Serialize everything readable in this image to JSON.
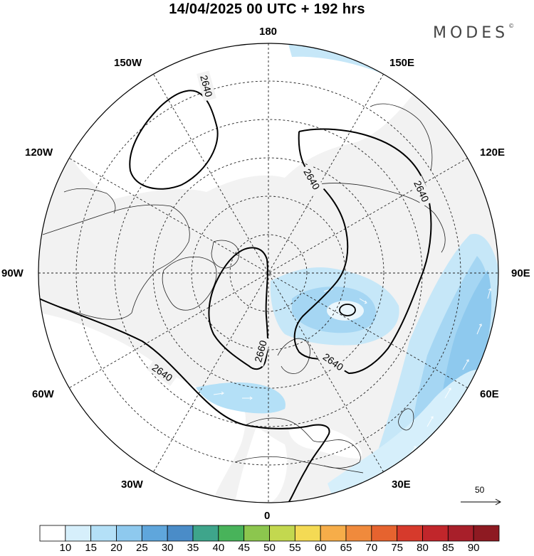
{
  "title": "14/04/2025  00 UTC  + 192 hrs",
  "brand": {
    "name": "MODES",
    "mark": "©"
  },
  "longitude_labels": {
    "n180": "180",
    "e150": "150E",
    "e120": "120E",
    "e90": "90E",
    "e60": "60E",
    "e30": "30E",
    "s0": "0",
    "w30": "30W",
    "w60": "60W",
    "w90": "90W",
    "w120": "120W",
    "w150": "150W"
  },
  "contours": {
    "label_2640": "2640",
    "label_2660": "2660"
  },
  "wind_scale": {
    "label": "50"
  },
  "colorbar": {
    "labels": [
      "10",
      "15",
      "20",
      "25",
      "30",
      "35",
      "40",
      "45",
      "50",
      "55",
      "60",
      "65",
      "70",
      "75",
      "80",
      "85",
      "90"
    ],
    "colors": [
      "#ffffff",
      "#d6effb",
      "#b4e0f7",
      "#8ec9ee",
      "#5fa6dc",
      "#4a8cc8",
      "#3ea58b",
      "#48b35a",
      "#8cc64e",
      "#c3d84f",
      "#f4da54",
      "#f6ad49",
      "#f08a3c",
      "#e6632f",
      "#d63a2c",
      "#c1262b",
      "#a81f2a",
      "#8e1a22"
    ]
  }
}
